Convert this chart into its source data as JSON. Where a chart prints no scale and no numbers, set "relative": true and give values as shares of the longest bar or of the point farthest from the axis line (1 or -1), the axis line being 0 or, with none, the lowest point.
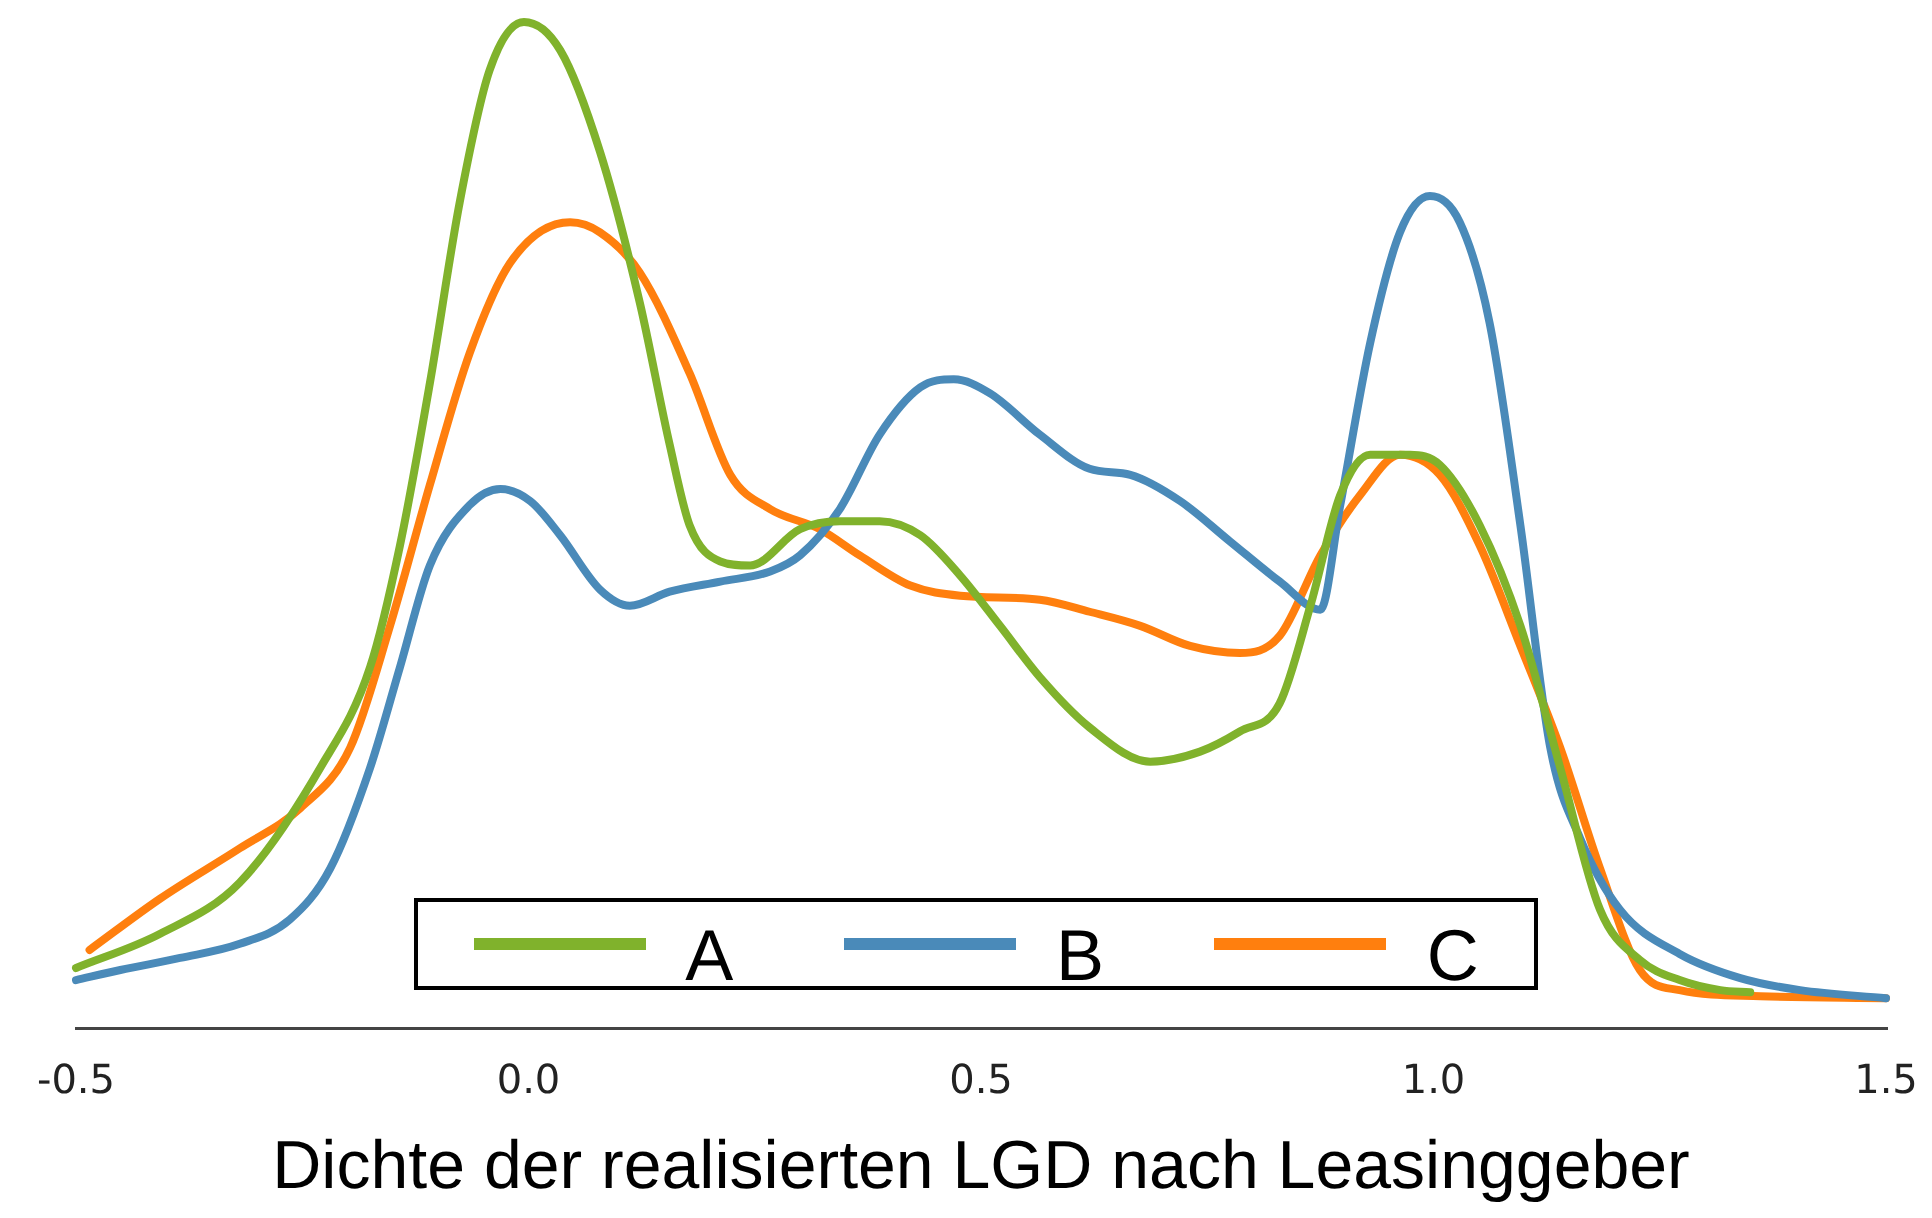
{
  "chart_data": {
    "type": "line",
    "relative": true,
    "xlabel": "Dichte der realisierten LGD nach Leasinggeber",
    "xlim": [
      -0.5,
      1.5
    ],
    "xticks": [
      -0.5,
      {
        "value": 0,
        "label": "0.0"
      },
      0.5,
      {
        "value": 1,
        "label": "1.0"
      },
      1.5
    ],
    "legend": "bottom",
    "marker": "none",
    "line_style": "solid",
    "series": [
      {
        "name": "A",
        "color": "#80b22c",
        "x": [
          -0.5,
          -0.407,
          -0.319,
          -0.23,
          -0.175,
          -0.142,
          -0.109,
          -0.076,
          -0.043,
          -0.005,
          0.035,
          0.079,
          0.123,
          0.156,
          0.178,
          0.212,
          0.245,
          0.3,
          0.344,
          0.388,
          0.433,
          0.477,
          0.521,
          0.565,
          0.62,
          0.687,
          0.742,
          0.786,
          0.83,
          0.864,
          0.897,
          0.93,
          0.974,
          1.007,
          1.051,
          1.096,
          1.14,
          1.184,
          1.228,
          1.272,
          1.317,
          1.35
        ],
        "values": [
          0.06,
          0.094,
          0.145,
          0.259,
          0.359,
          0.48,
          0.641,
          0.821,
          0.952,
          1,
          0.972,
          0.871,
          0.721,
          0.58,
          0.5,
          0.464,
          0.46,
          0.496,
          0.504,
          0.504,
          0.49,
          0.45,
          0.4,
          0.349,
          0.299,
          0.265,
          0.275,
          0.295,
          0.323,
          0.42,
          0.53,
          0.57,
          0.57,
          0.56,
          0.5,
          0.4,
          0.259,
          0.118,
          0.068,
          0.048,
          0.038,
          0.036
        ]
      },
      {
        "name": "B",
        "color": "#4a8ab9",
        "x": [
          -0.5,
          -0.451,
          -0.385,
          -0.319,
          -0.264,
          -0.219,
          -0.175,
          -0.142,
          -0.109,
          -0.065,
          -0.031,
          0.002,
          0.035,
          0.079,
          0.112,
          0.156,
          0.212,
          0.267,
          0.3,
          0.344,
          0.388,
          0.433,
          0.47,
          0.51,
          0.565,
          0.62,
          0.665,
          0.72,
          0.775,
          0.83,
          0.875,
          0.897,
          0.93,
          0.963,
          0.996,
          1.029,
          1.062,
          1.096,
          1.129,
          1.162,
          1.206,
          1.272,
          1.339,
          1.405,
          1.5
        ],
        "values": [
          0.048,
          0.058,
          0.07,
          0.084,
          0.108,
          0.159,
          0.259,
          0.359,
          0.46,
          0.52,
          0.536,
          0.524,
          0.49,
          0.436,
          0.42,
          0.434,
          0.444,
          0.454,
          0.47,
          0.516,
          0.59,
          0.637,
          0.645,
          0.631,
          0.59,
          0.556,
          0.55,
          0.524,
          0.484,
          0.444,
          0.416,
          0.52,
          0.681,
          0.791,
          0.827,
          0.801,
          0.701,
          0.5,
          0.279,
          0.189,
          0.118,
          0.074,
          0.05,
          0.038,
          0.03
        ]
      },
      {
        "name": "C",
        "color": "#ff7f0e",
        "x": [
          -0.485,
          -0.407,
          -0.319,
          -0.252,
          -0.197,
          -0.153,
          -0.109,
          -0.065,
          -0.02,
          0.046,
          0.079,
          0.123,
          0.178,
          0.223,
          0.267,
          0.322,
          0.366,
          0.422,
          0.477,
          0.565,
          0.62,
          0.676,
          0.731,
          0.786,
          0.83,
          0.875,
          0.919,
          0.963,
          1.007,
          1.051,
          1.096,
          1.14,
          1.184,
          1.228,
          1.272,
          1.361,
          1.5
        ],
        "values": [
          0.078,
          0.129,
          0.179,
          0.219,
          0.279,
          0.4,
          0.54,
          0.671,
          0.761,
          0.801,
          0.791,
          0.751,
          0.651,
          0.55,
          0.516,
          0.496,
          0.47,
          0.44,
          0.43,
          0.426,
          0.414,
          0.4,
          0.38,
          0.373,
          0.39,
          0.47,
          0.53,
          0.57,
          0.55,
          0.48,
          0.38,
          0.279,
          0.159,
          0.058,
          0.038,
          0.032,
          0.03
        ]
      }
    ]
  }
}
